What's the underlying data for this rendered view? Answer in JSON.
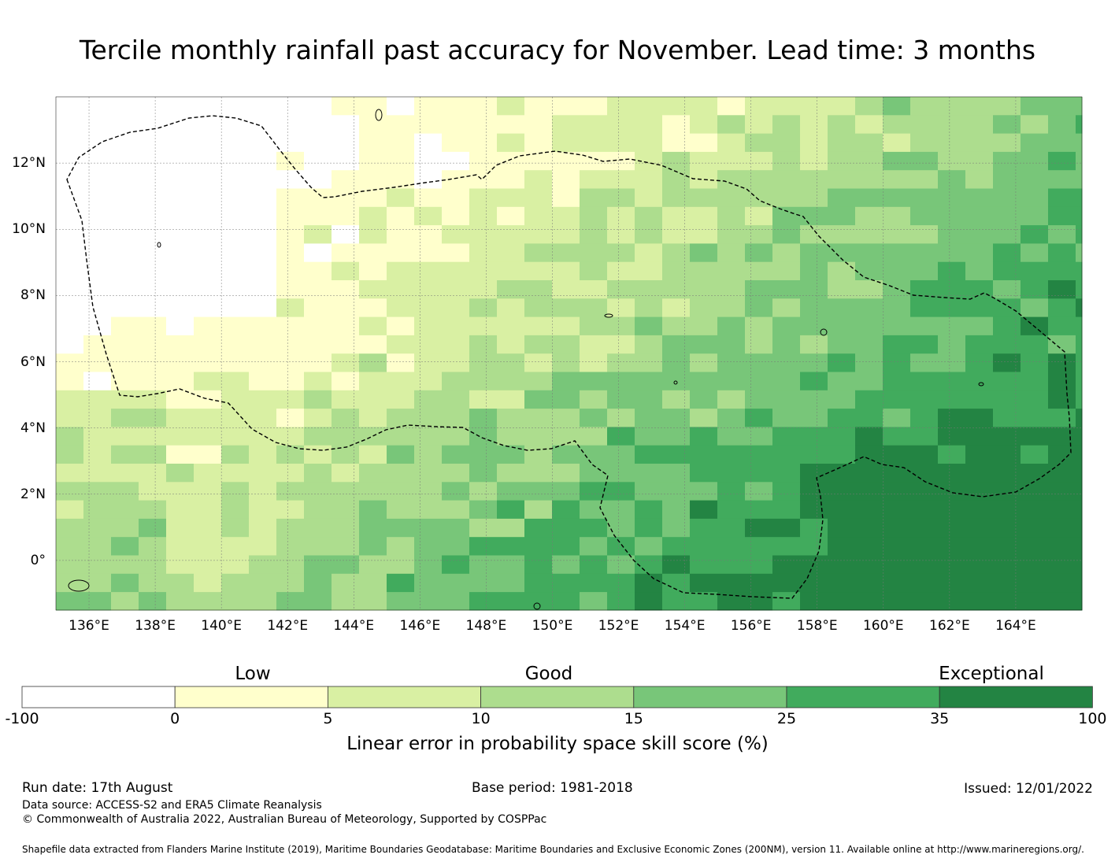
{
  "title": "Tercile monthly rainfall past accuracy for November. Lead time: 3 months",
  "map": {
    "lon_range": [
      135,
      166
    ],
    "lat_range": [
      -1.5,
      14
    ],
    "x_ticks": [
      "136°E",
      "138°E",
      "140°E",
      "142°E",
      "144°E",
      "146°E",
      "148°E",
      "150°E",
      "152°E",
      "154°E",
      "156°E",
      "158°E",
      "160°E",
      "162°E",
      "164°E"
    ],
    "y_ticks": [
      "12°N",
      "10°N",
      "8°N",
      "6°N",
      "4°N",
      "2°N",
      "0°"
    ],
    "boundary_line": "dashed"
  },
  "colorbar": {
    "categories": [
      "Low",
      "Good",
      "Exceptional"
    ],
    "ticks": [
      "-100",
      "0",
      "5",
      "10",
      "15",
      "25",
      "35",
      "100"
    ],
    "colors": [
      "#ffffff",
      "#ffffcc",
      "#d9f0a3",
      "#addd8e",
      "#78c679",
      "#41ab5d",
      "#238443"
    ],
    "label": "Linear error in probability space skill score (%)"
  },
  "footer": {
    "run_date": "Run date: 17th August",
    "base_period": "Base period: 1981-2018",
    "issued": "Issued: 12/01/2022",
    "data_source": "Data source: ACCESS-S2 and ERA5 Climate Reanalysis",
    "copyright": "© Commonwealth of Australia 2022, Australian Bureau of Meteorology, Supported by COSPPac",
    "shapefile": "Shapefile data extracted from Flanders Marine Institute (2019), Maritime Boundaries Geodatabase: Maritime Boundaries and Exclusive Economic Zones (200NM), version 11. Available online at http://www.marineregions.org/."
  }
}
